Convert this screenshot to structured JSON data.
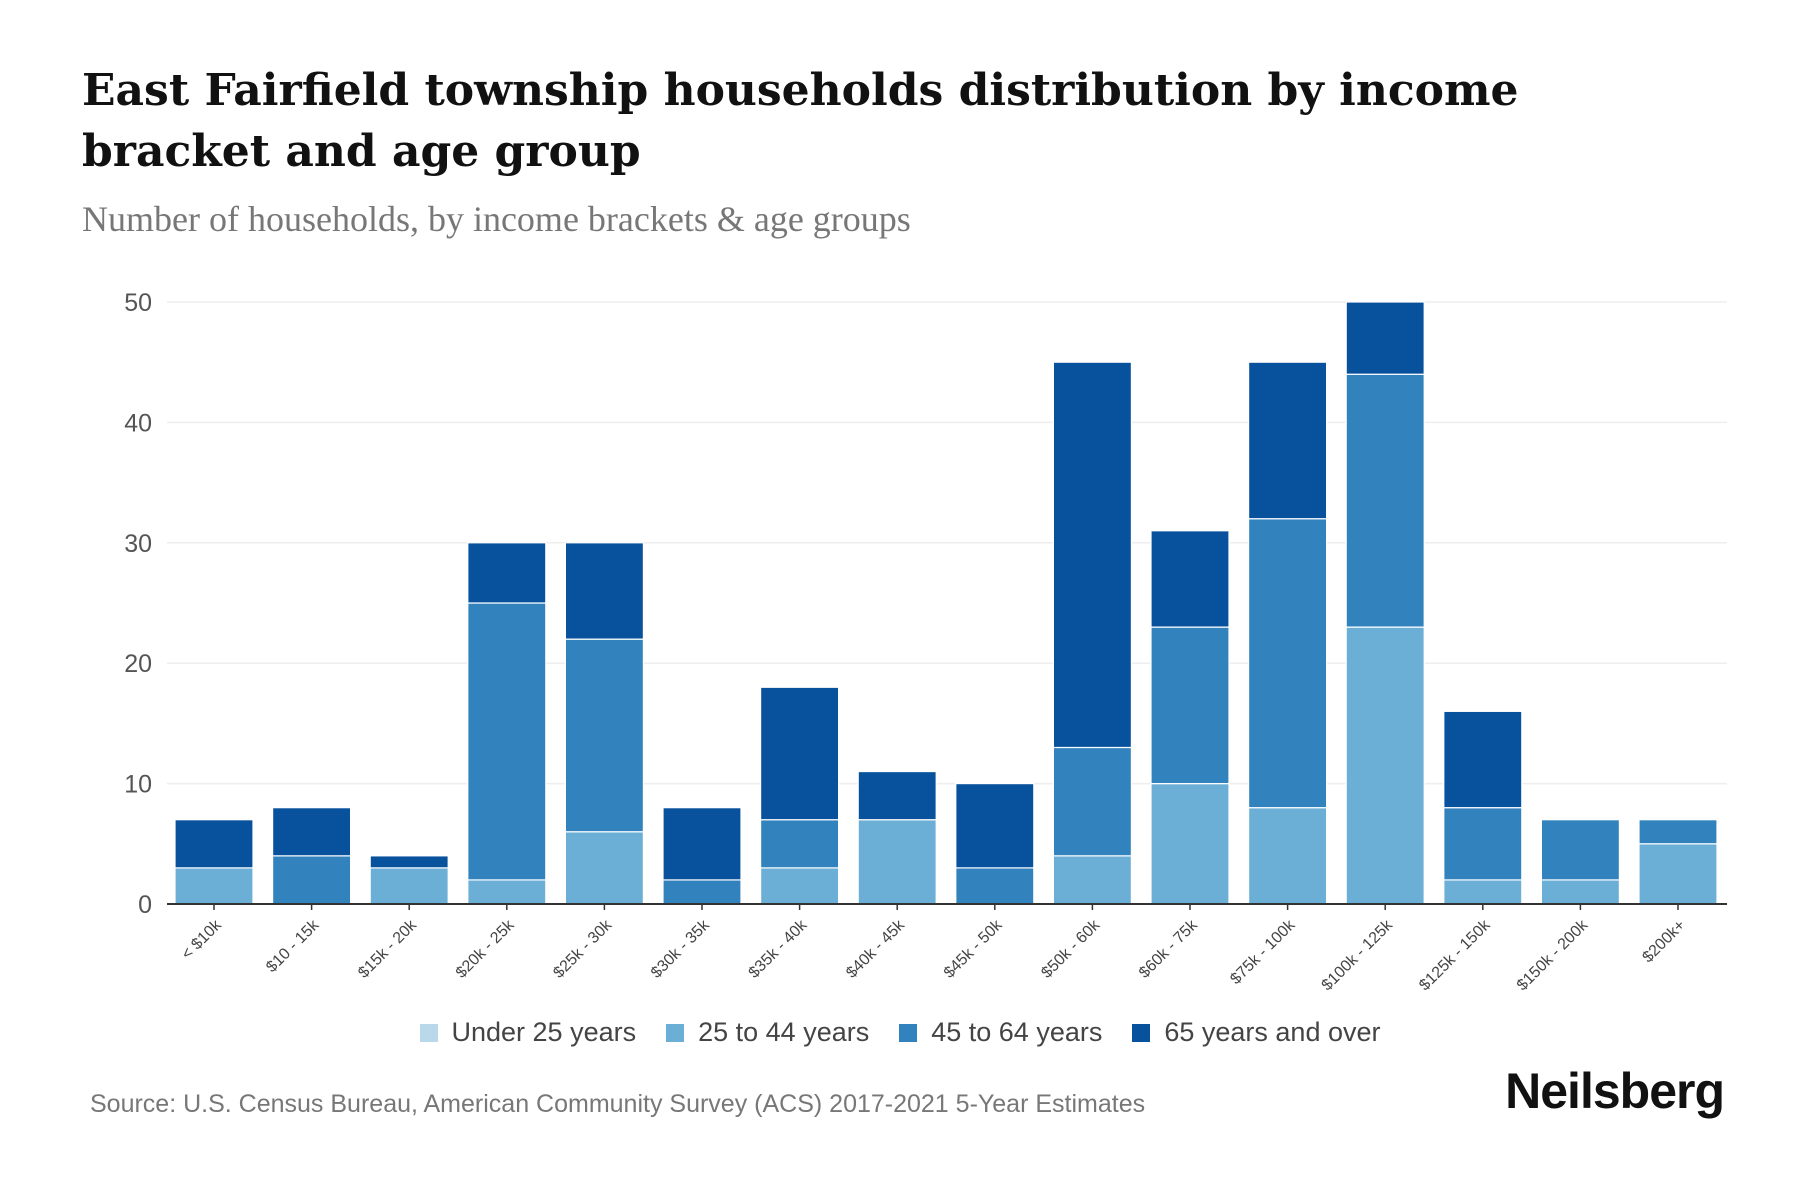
{
  "title": "East Fairfield township households distribution by income bracket and age group",
  "subtitle": "Number of households, by income brackets & age groups",
  "source": "Source: U.S. Census Bureau, American Community Survey (ACS) 2017-2021 5-Year Estimates",
  "logo": "Neilsberg",
  "chart_data": {
    "type": "bar",
    "stacked": true,
    "title": "East Fairfield township households distribution by income bracket and age group",
    "xlabel": "",
    "ylabel": "",
    "ylim": [
      0,
      50
    ],
    "yticks": [
      0,
      10,
      20,
      30,
      40,
      50
    ],
    "grid": true,
    "legend_position": "bottom",
    "categories": [
      "< $10k",
      "$10 - 15k",
      "$15k - 20k",
      "$20k - 25k",
      "$25k - 30k",
      "$30k - 35k",
      "$35k - 40k",
      "$40k - 45k",
      "$45k - 50k",
      "$50k - 60k",
      "$60k - 75k",
      "$75k - 100k",
      "$100k - 125k",
      "$125k - 150k",
      "$150k - 200k",
      "$200k+"
    ],
    "series": [
      {
        "name": "Under 25 years",
        "color": "#b9d8ea",
        "values": [
          0,
          0,
          0,
          0,
          0,
          0,
          0,
          0,
          0,
          0,
          0,
          0,
          0,
          0,
          0,
          0
        ]
      },
      {
        "name": "25 to 44 years",
        "color": "#6baed6",
        "values": [
          3,
          0,
          3,
          2,
          6,
          0,
          3,
          7,
          0,
          4,
          10,
          8,
          23,
          2,
          2,
          5
        ]
      },
      {
        "name": "45 to 64 years",
        "color": "#3182bd",
        "values": [
          0,
          4,
          0,
          23,
          16,
          2,
          4,
          0,
          3,
          9,
          13,
          24,
          21,
          6,
          5,
          2
        ]
      },
      {
        "name": "65 years and over",
        "color": "#08519c",
        "values": [
          4,
          4,
          1,
          5,
          8,
          6,
          11,
          4,
          7,
          32,
          8,
          13,
          6,
          8,
          0,
          0
        ]
      }
    ]
  }
}
